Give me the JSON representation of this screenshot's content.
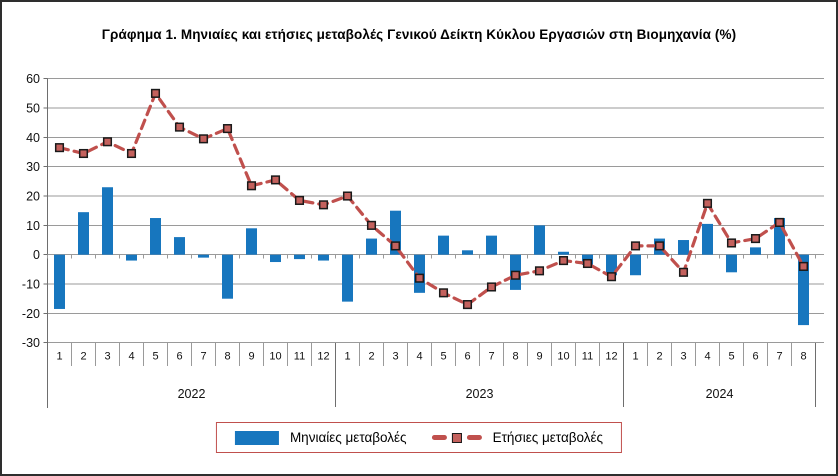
{
  "title": "Γράφημα 1. Μηνιαίες και ετήσιες μεταβολές  Γενικού Δείκτη Κύκλου Εργασιών στη Βιομηχανία (%)",
  "legend": {
    "monthly": "Μηνιαίες μεταβολές",
    "annual": "Ετήσιες μεταβολές"
  },
  "colors": {
    "bar": "#1776be",
    "line": "#c0504d",
    "marker_fill": "#c4615d",
    "marker_stroke": "#1a1a1a",
    "grid": "#9a9a9a",
    "axis": "#6e6e6e",
    "legend_border": "#c0504d",
    "text": "#000000"
  },
  "chart_data": {
    "type": "bar",
    "subtype": "bar-plus-dashed-line",
    "title": "Γράφημα 1. Μηνιαίες και ετήσιες μεταβολές  Γενικού Δείκτη Κύκλου Εργασιών στη Βιομηχανία (%)",
    "xlabel": "",
    "ylabel": "",
    "ylim": [
      -30,
      60
    ],
    "ytick_step": 10,
    "yticks": [
      60,
      50,
      40,
      30,
      20,
      10,
      0,
      -10,
      -20,
      -30
    ],
    "grid": true,
    "legend_position": "bottom",
    "year_groups": [
      {
        "label": "2022",
        "months": [
          "1",
          "2",
          "3",
          "4",
          "5",
          "6",
          "7",
          "8",
          "9",
          "10",
          "11",
          "12"
        ]
      },
      {
        "label": "2023",
        "months": [
          "1",
          "2",
          "3",
          "4",
          "5",
          "6",
          "7",
          "8",
          "9",
          "10",
          "11",
          "12"
        ]
      },
      {
        "label": "2024",
        "months": [
          "1",
          "2",
          "3",
          "4",
          "5",
          "6",
          "7",
          "8"
        ]
      }
    ],
    "series": [
      {
        "name": "Μηνιαίες μεταβολές",
        "type": "bar",
        "values": [
          -18.5,
          14.5,
          23,
          -2,
          12.5,
          6,
          -1,
          -15,
          9,
          -2.5,
          -1.5,
          -2,
          -16,
          5.5,
          15,
          -13,
          6.5,
          1.5,
          6.5,
          -12,
          10,
          1,
          -3.5,
          -7,
          -7,
          5.5,
          5,
          10.5,
          -6,
          2.5,
          12.5,
          -24
        ]
      },
      {
        "name": "Ετήσιες μεταβολές",
        "type": "line-dashed-square-markers",
        "values": [
          36.5,
          34.5,
          38.5,
          34.5,
          55,
          43.5,
          39.5,
          43,
          23.5,
          25.5,
          18.5,
          17,
          20,
          10,
          3,
          -8,
          -13,
          -17,
          -11,
          -7,
          -5.5,
          -2,
          -3,
          -7.5,
          3,
          3,
          -6,
          17.5,
          4,
          5.5,
          11,
          -4
        ]
      }
    ]
  }
}
